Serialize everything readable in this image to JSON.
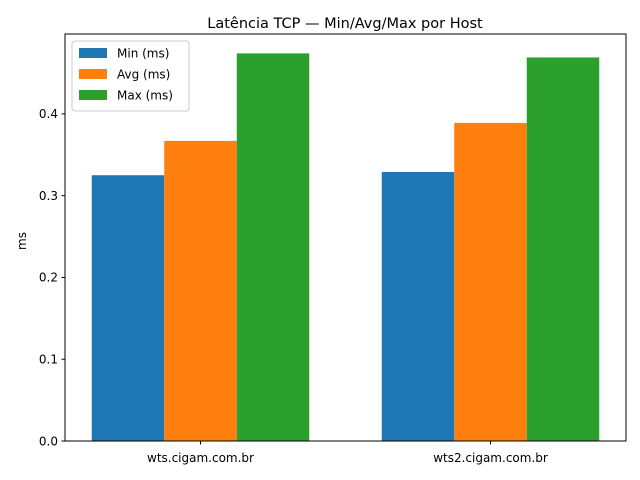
{
  "chart_data": {
    "type": "bar",
    "title": "Latência TCP — Min/Avg/Max por Host",
    "xlabel": "",
    "ylabel": "ms",
    "categories": [
      "wts.cigam.com.br",
      "wts2.cigam.com.br"
    ],
    "series": [
      {
        "name": "Min (ms)",
        "color": "#1f77b4",
        "values": [
          0.325,
          0.329
        ]
      },
      {
        "name": "Avg (ms)",
        "color": "#ff7f0e",
        "values": [
          0.367,
          0.389
        ]
      },
      {
        "name": "Max (ms)",
        "color": "#2ca02c",
        "values": [
          0.474,
          0.469
        ]
      }
    ],
    "ylim": [
      0,
      0.4977
    ],
    "yticks": [
      0.0,
      0.1,
      0.2,
      0.3,
      0.4
    ],
    "ytick_labels": [
      "0.0",
      "0.1",
      "0.2",
      "0.3",
      "0.4"
    ],
    "grid": false,
    "legend_position": "top-left"
  }
}
